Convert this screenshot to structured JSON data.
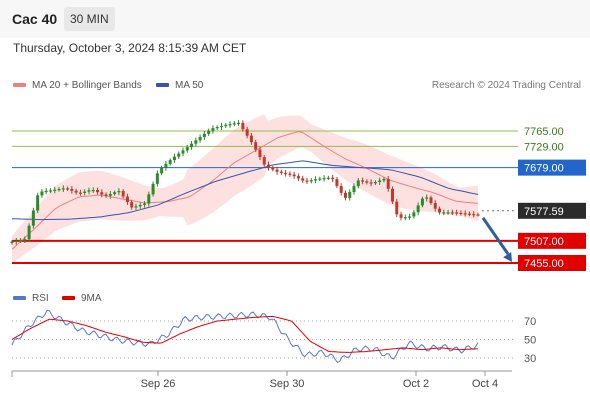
{
  "header": {
    "title": "Cac 40",
    "timeframe": "30 MIN"
  },
  "datetime": "Thursday, October 3, 2024 8:15:39 AM CET",
  "legend": {
    "bb": "MA 20 + Bollinger Bands",
    "ma50": "MA 50"
  },
  "source": "Research © 2024 Trading Central",
  "rsi_legend": {
    "rsi": "RSI",
    "ma": "9MA"
  },
  "colors": {
    "bb_fill": "#fde0e0",
    "ma20": "#f08080",
    "ma50": "#3355aa",
    "up": "#2b8a2b",
    "down": "#c0392b",
    "support": "#e00000",
    "resistance": "#2266cc",
    "target": "#8fbf4a"
  },
  "chart_data": {
    "type": "candlestick",
    "ylim": [
      7430,
      7820
    ],
    "x_ticks": [
      "Sep 26",
      "Sep 30",
      "Oct 2",
      "Oct 4"
    ],
    "levels": [
      {
        "label": "7765.00",
        "value": 7765,
        "kind": "target"
      },
      {
        "label": "7729.00",
        "value": 7729,
        "kind": "target"
      },
      {
        "label": "7679.00",
        "value": 7679,
        "kind": "resistance"
      },
      {
        "label": "7577.59",
        "value": 7577.59,
        "kind": "last"
      },
      {
        "label": "7507.00",
        "value": 7507,
        "kind": "support"
      },
      {
        "label": "7455.00",
        "value": 7455,
        "kind": "support"
      }
    ],
    "close_anchors": [
      7505,
      7511,
      7622,
      7626,
      7631,
      7618,
      7628,
      7612,
      7625,
      7585,
      7595,
      7672,
      7700,
      7723,
      7748,
      7771,
      7779,
      7785,
      7738,
      7683,
      7668,
      7662,
      7646,
      7653,
      7656,
      7606,
      7649,
      7642,
      7653,
      7560,
      7565,
      7615,
      7574,
      7574,
      7571,
      7568
    ],
    "ma20_anchors": [
      7487,
      7535,
      7585,
      7610,
      7615,
      7605,
      7596,
      7599,
      7610,
      7646,
      7690,
      7720,
      7750,
      7765,
      7731,
      7700,
      7677,
      7650,
      7634,
      7620,
      7600,
      7595
    ],
    "ma50_anchors": [
      7559,
      7557,
      7558,
      7563,
      7573,
      7591,
      7620,
      7647,
      7667,
      7686,
      7695,
      7684,
      7679,
      7674,
      7657,
      7630,
      7616
    ],
    "rsi": {
      "levels": [
        70,
        50,
        30
      ],
      "ylim": [
        20,
        85
      ],
      "rsi_anchors": [
        44,
        65,
        80,
        70,
        60,
        55,
        50,
        47,
        45,
        55,
        72,
        74,
        75,
        76,
        77,
        74,
        50,
        33,
        36,
        27,
        40,
        40,
        30,
        46,
        40,
        42,
        38,
        44
      ],
      "ma_anchors": [
        50,
        62,
        72,
        70,
        65,
        58,
        53,
        47,
        46,
        56,
        64,
        70,
        72,
        74,
        75,
        70,
        48,
        37,
        36,
        37,
        39,
        41,
        39,
        41,
        39,
        40
      ]
    }
  }
}
